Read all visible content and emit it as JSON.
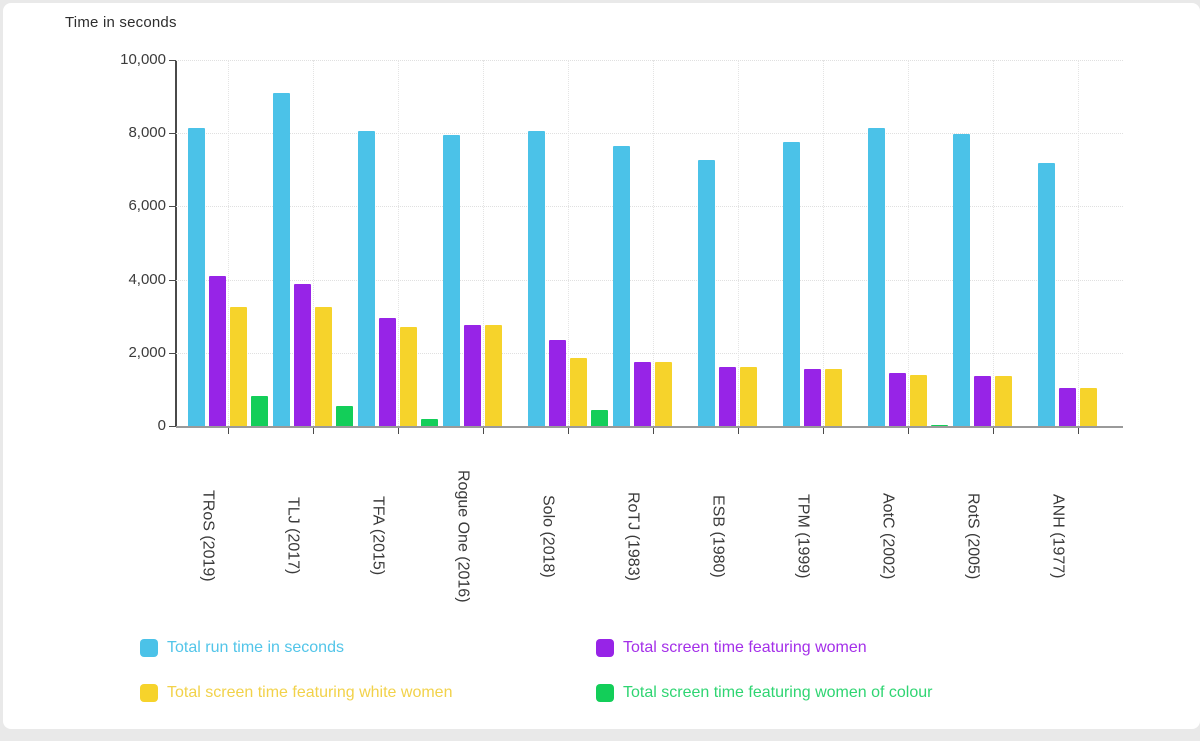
{
  "chart_data": {
    "type": "bar",
    "title": "Time in seconds",
    "xlabel": "",
    "ylabel": "Time in seconds",
    "ylim": [
      0,
      10000
    ],
    "grid": true,
    "legend_position": "bottom",
    "categories": [
      "TRoS (2019)",
      "TLJ (2017)",
      "TFA (2015)",
      "Rogue One (2016)",
      "Solo (2018)",
      "RoTJ (1983)",
      "ESB (1980)",
      "TPM (1999)",
      "AotC (2002)",
      "RotS (2005)",
      "ANH (1977)"
    ],
    "yticks": [
      {
        "value": 10000,
        "label": "10,000"
      },
      {
        "value": 8000,
        "label": "8,000"
      },
      {
        "value": 6000,
        "label": "6,000"
      },
      {
        "value": 4000,
        "label": "4,000"
      },
      {
        "value": 2000,
        "label": "2,000"
      },
      {
        "value": 0,
        "label": "0"
      }
    ],
    "series": [
      {
        "name": "Total run time in seconds",
        "color": "#4BC2E8",
        "text_color": "#52C5E9",
        "values": [
          8130,
          9100,
          8070,
          7950,
          8070,
          7650,
          7280,
          7760,
          8130,
          7990,
          7180
        ]
      },
      {
        "name": "Total screen time featuring women",
        "color": "#9724E7",
        "text_color": "#A42FE9",
        "values": [
          4110,
          3870,
          2950,
          2750,
          2350,
          1760,
          1600,
          1550,
          1450,
          1360,
          1050
        ]
      },
      {
        "name": "Total screen time featuring white women",
        "color": "#F6D32B",
        "text_color": "#F2D24A",
        "values": [
          3250,
          3250,
          2700,
          2750,
          1870,
          1760,
          1600,
          1550,
          1400,
          1360,
          1050
        ]
      },
      {
        "name": "Total screen time featuring women of colour",
        "color": "#13CE59",
        "text_color": "#2FD572",
        "values": [
          820,
          560,
          200,
          0,
          430,
          0,
          0,
          0,
          40,
          0,
          0
        ]
      }
    ],
    "legend_order": [
      0,
      1,
      2,
      3
    ]
  }
}
